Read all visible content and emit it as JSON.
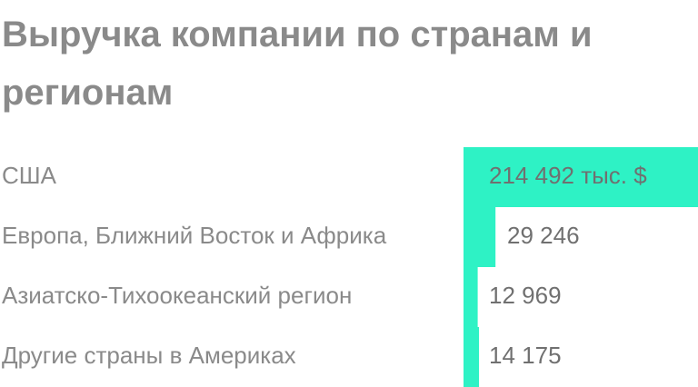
{
  "chart_data": {
    "type": "bar",
    "orientation": "horizontal",
    "title": "Выручка компании по странам и регионам",
    "categories": [
      "США",
      "Европа, Ближний Восток и Африка",
      "Азиатско-Тихоокеанский регион",
      "Другие страны в Америках"
    ],
    "values": [
      214492,
      29246,
      12969,
      14175
    ],
    "value_labels": [
      "214 492 тыс. $",
      "29 246",
      "12 969",
      "14 175"
    ],
    "unit": "тыс. $",
    "bar_color": "#2ef2c5",
    "text_color": "#8a8a8a",
    "grid": false,
    "legend": "none"
  }
}
